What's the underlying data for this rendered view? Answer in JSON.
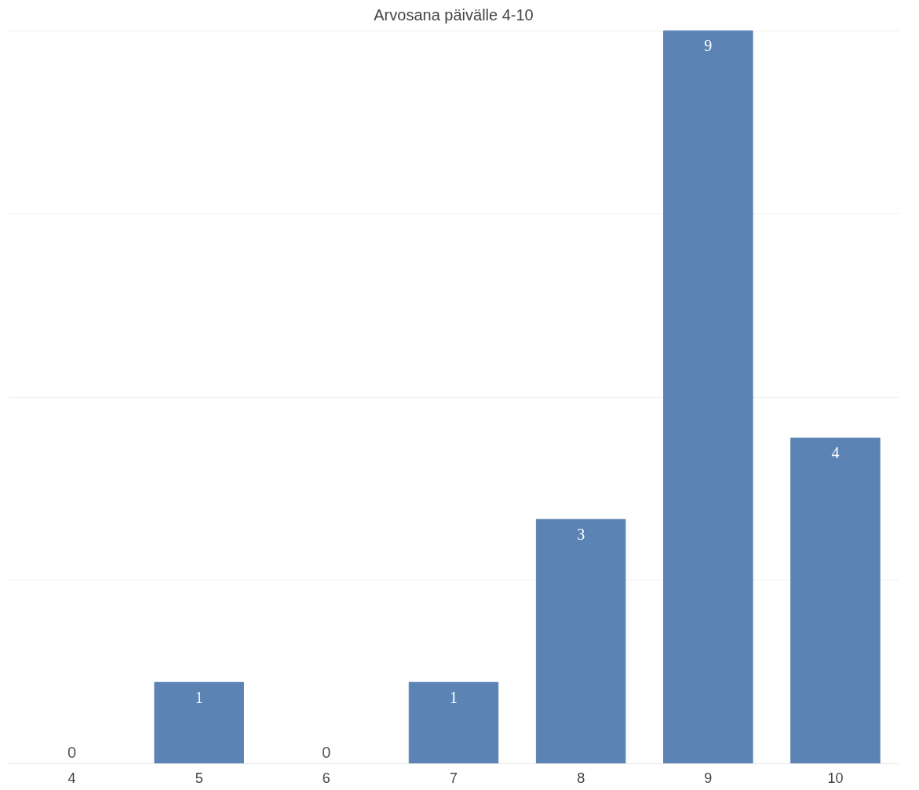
{
  "chart_data": {
    "type": "bar",
    "title": "Arvosana päivälle 4-10",
    "categories": [
      "4",
      "5",
      "6",
      "7",
      "8",
      "9",
      "10"
    ],
    "values": [
      0,
      1,
      0,
      1,
      3,
      9,
      4
    ],
    "color": "#5b84b5",
    "ylim": [
      0,
      9
    ],
    "yticks": [
      {
        "value": 0,
        "label": null
      },
      {
        "value": 2.25,
        "label": null
      },
      {
        "value": 4.5,
        "label": null
      },
      {
        "value": 6.75,
        "label": null
      },
      {
        "value": 9,
        "label": null
      }
    ],
    "grid": "y",
    "tick_labels": "x",
    "data_labels": true
  }
}
